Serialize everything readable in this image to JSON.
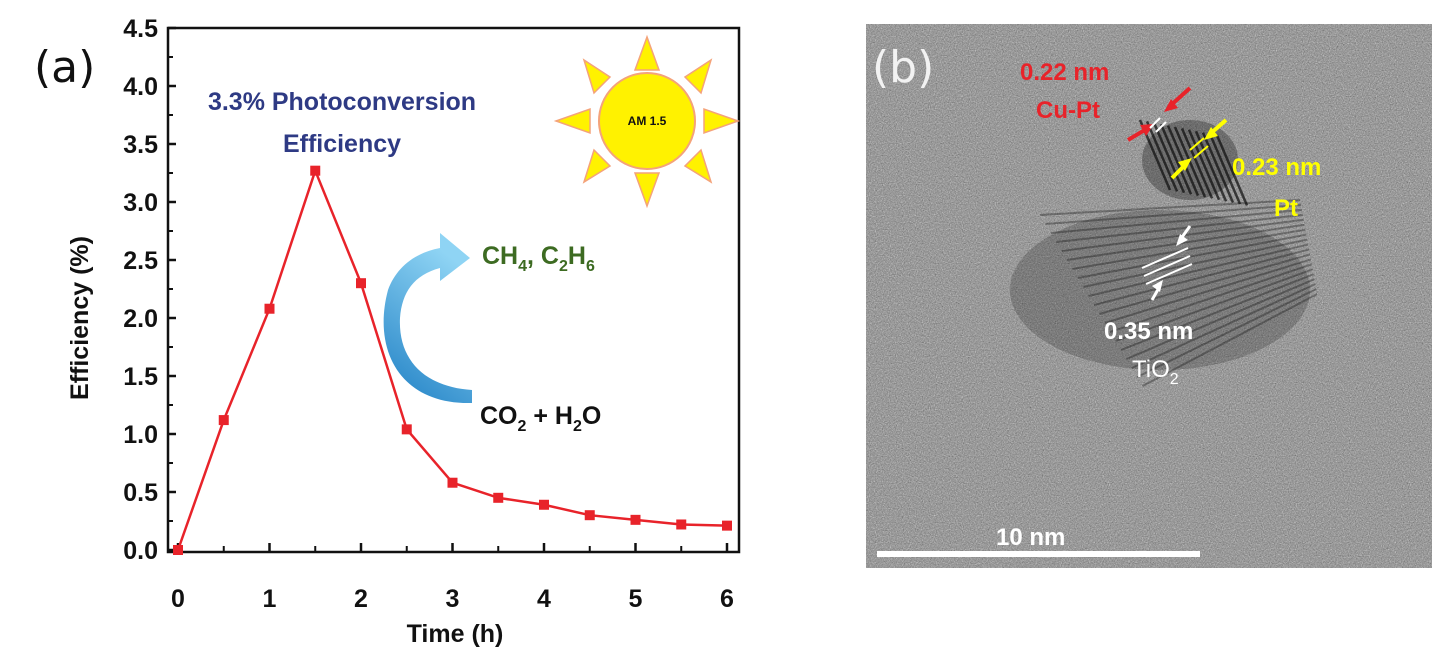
{
  "panels": {
    "a_label": "(a)",
    "b_label": "(b)"
  },
  "chart_data": {
    "type": "line",
    "xlabel": "Time (h)",
    "ylabel": "Efficiency (%)",
    "xlim": [
      0,
      6
    ],
    "ylim": [
      0,
      4.5
    ],
    "x_ticks": [
      "0",
      "1",
      "2",
      "3",
      "4",
      "5",
      "6"
    ],
    "y_ticks": [
      "0.0",
      "0.5",
      "1.0",
      "1.5",
      "2.0",
      "2.5",
      "3.0",
      "3.5",
      "4.0",
      "4.5"
    ],
    "grid": false,
    "series": [
      {
        "color": "#e8232a",
        "marker": "square",
        "x": [
          0,
          0.5,
          1,
          1.5,
          2,
          2.5,
          3,
          3.5,
          4,
          4.5,
          5,
          5.5,
          6
        ],
        "y": [
          0.0,
          1.12,
          2.08,
          3.27,
          2.3,
          1.04,
          0.58,
          0.45,
          0.39,
          0.3,
          0.26,
          0.22,
          0.21
        ]
      }
    ],
    "annotations": {
      "efficiency_line1": "3.3% Photoconversion",
      "efficiency_line2": "Efficiency",
      "sun_label": "AM 1.5",
      "products_a": "CH",
      "products_a_sub": "4",
      "products_b": ", C",
      "products_b_sub1": "2",
      "products_b_mid": "H",
      "products_b_sub2": "6",
      "reactants_a": "CO",
      "reactants_a_sub": "2",
      "reactants_b": " + H",
      "reactants_b_sub": "2",
      "reactants_c": "O"
    }
  },
  "tem": {
    "cupt_spacing": "0.22 nm",
    "cupt_label": "Cu-Pt",
    "pt_spacing": "0.23 nm",
    "pt_label": "Pt",
    "tio2_spacing": "0.35 nm",
    "tio2_label": "TiO",
    "tio2_sub": "2",
    "scale_bar": "10 nm"
  },
  "colors": {
    "line": "#e8232a",
    "efficiency_text": "#2e3a84",
    "products_text": "#3d6b22",
    "sun_fill": "#fff200",
    "sun_stroke": "#f4a37a",
    "cupt": "#e8232a",
    "pt": "#ffff00",
    "tio2": "#ffffff"
  }
}
